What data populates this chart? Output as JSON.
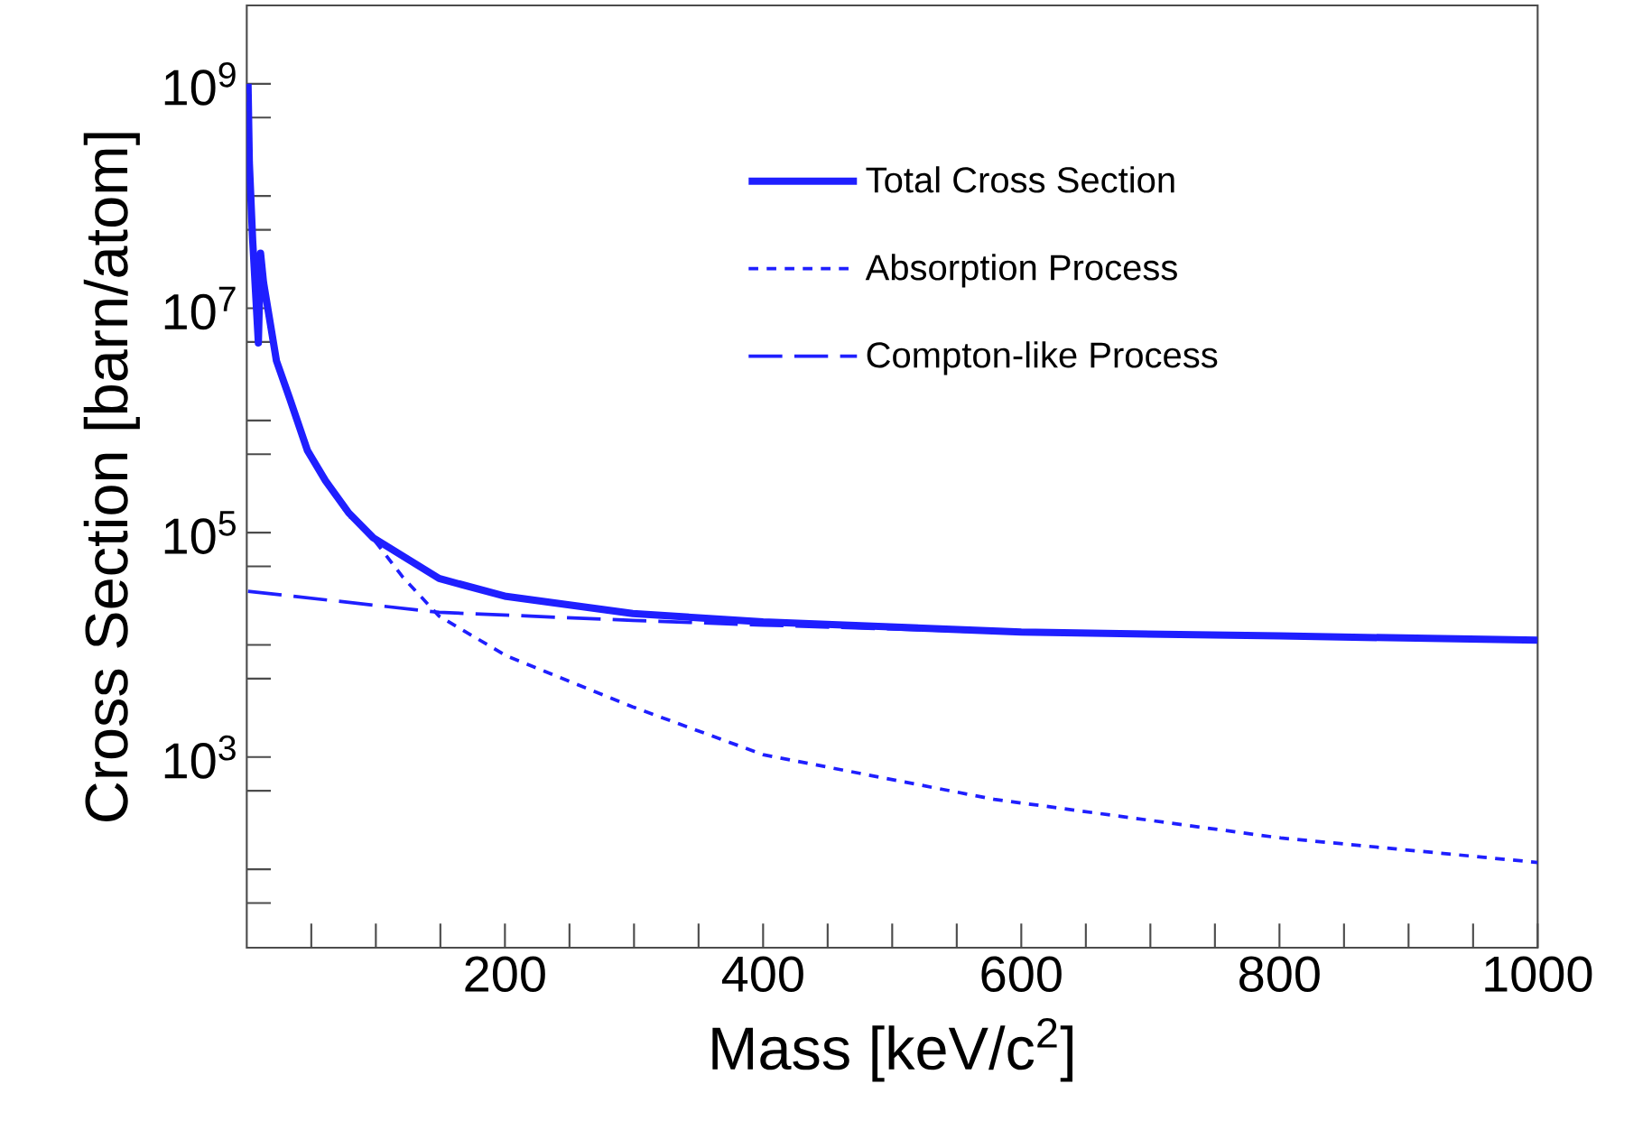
{
  "chart_data": {
    "type": "line",
    "xlabel": "Mass [keV/c$^{2}$]",
    "ylabel": "Cross Section [barn/atom]",
    "log": "y",
    "legend": "top right",
    "grid": false,
    "xlim": [
      0,
      1000
    ],
    "ylim": [
      20,
      5000000000
    ],
    "xticks": [
      {
        "value": 50,
        "label": null
      },
      {
        "value": 100,
        "label": null
      },
      {
        "value": 150,
        "label": null
      },
      200,
      {
        "value": 250,
        "label": null
      },
      {
        "value": 300,
        "label": null
      },
      {
        "value": 350,
        "label": null
      },
      400,
      {
        "value": 450,
        "label": null
      },
      {
        "value": 500,
        "label": null
      },
      {
        "value": 550,
        "label": null
      },
      600,
      {
        "value": 650,
        "label": null
      },
      {
        "value": 700,
        "label": null
      },
      {
        "value": 750,
        "label": null
      },
      800,
      {
        "value": 850,
        "label": null
      },
      {
        "value": 900,
        "label": null
      },
      {
        "value": 950,
        "label": null
      },
      1000
    ],
    "yticks": [
      {
        "value": 50,
        "label": null
      },
      {
        "value": 100,
        "label": null
      },
      {
        "value": 500,
        "label": null
      },
      {
        "value": 1000,
        "label": "10$^{3}$"
      },
      {
        "value": 5000,
        "label": null
      },
      {
        "value": 10000,
        "label": null
      },
      {
        "value": 50000,
        "label": null
      },
      {
        "value": 100000,
        "label": "10$^{5}$"
      },
      {
        "value": 500000,
        "label": null
      },
      {
        "value": 1000000,
        "label": null
      },
      {
        "value": 5000000,
        "label": null
      },
      {
        "value": 10000000,
        "label": "10$^{7}$"
      },
      {
        "value": 50000000,
        "label": null
      },
      {
        "value": 100000000,
        "label": null
      },
      {
        "value": 500000000,
        "label": null
      },
      {
        "value": 1000000000,
        "label": "10$^{9}$"
      }
    ],
    "series": [
      {
        "name": "Total Cross Section",
        "color": "#1f1fff",
        "line_style": "solid",
        "x": [
          1,
          2,
          4.6,
          9,
          10.7,
          13,
          23,
          33,
          47,
          61,
          79,
          98,
          149,
          201,
          299,
          400,
          600,
          800,
          1000
        ],
        "values": [
          1000000000,
          200000000,
          40000000,
          4900000,
          31000000,
          17000000,
          3400000,
          1600000,
          540000,
          290000,
          150000,
          90000,
          39000,
          27000,
          19000,
          16000,
          13000,
          12000,
          11000
        ]
      },
      {
        "name": "Absorption Process",
        "color": "#1f1fff",
        "line_style": "dotted",
        "x": [
          1,
          2,
          4.6,
          9,
          10.7,
          13,
          23,
          33,
          47,
          61,
          79,
          89,
          121,
          149,
          201,
          299,
          400,
          579,
          801,
          1000
        ],
        "values": [
          1000000000,
          200000000,
          40000000,
          4900000,
          31000000,
          17000000,
          3400000,
          1600000,
          540000,
          290000,
          140000,
          120000,
          40000,
          18000,
          8000,
          2800,
          1050,
          420,
          190,
          115
        ]
      },
      {
        "name": "Compton-like Process",
        "color": "#1f1fff",
        "line_style": "dashed",
        "x": [
          1,
          149,
          299,
          400,
          579,
          800,
          1000
        ],
        "values": [
          30000,
          19500,
          16500,
          15000,
          13000,
          11700,
          11000
        ]
      }
    ]
  }
}
